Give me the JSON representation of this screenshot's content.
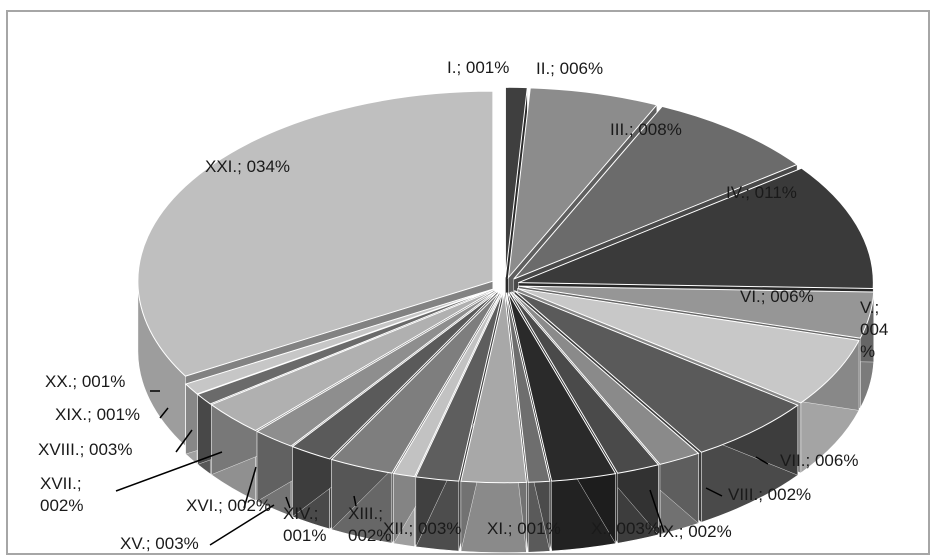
{
  "chart_data": {
    "type": "pie",
    "style": "3d-exploded",
    "legend": "none",
    "categories": [
      "I.",
      "II.",
      "III.",
      "IV.",
      "V.",
      "VI.",
      "VII.",
      "VIII.",
      "IX.",
      "X.",
      "XI.",
      "XII.",
      "XIII.",
      "XIV.",
      "XV.",
      "XVI.",
      "XVII.",
      "XVIII.",
      "XIX.",
      "XX.",
      "XXI."
    ],
    "values": [
      1,
      6,
      8,
      11,
      4,
      6,
      6,
      2,
      2,
      3,
      1,
      3,
      2,
      1,
      3,
      2,
      2,
      3,
      1,
      1,
      34
    ],
    "labels": [
      "I.; 001%",
      "II.; 006%",
      "III.; 008%",
      "IV.; 011%",
      "V.; 004 %",
      "VI.; 006%",
      "VII.; 006%",
      "VIII.; 002%",
      "IX.; 002%",
      "X.; 003%",
      "XI.; 001%",
      "XII.; 003%",
      "XIII.; 002%",
      "XIV.; 001%",
      "XV.; 003%",
      "XVI.; 002%",
      "XVII.; 002%",
      "XVIII.; 003%",
      "XIX.; 001%",
      "XX.; 001%",
      "XXI.; 034%"
    ],
    "colors": [
      "#3f3f3f",
      "#8c8c8c",
      "#6b6b6b",
      "#3a3a3a",
      "#969696",
      "#c8c8c8",
      "#5a5a5a",
      "#8a8a8a",
      "#4a4a4a",
      "#2a2a2a",
      "#6e6e6e",
      "#a8a8a8",
      "#5e5e5e",
      "#c2c2c2",
      "#7e7e7e",
      "#5a5a5a",
      "#8e8e8e",
      "#b0b0b0",
      "#6a6a6a",
      "#c6c6c6",
      "#bfbfbf"
    ]
  }
}
